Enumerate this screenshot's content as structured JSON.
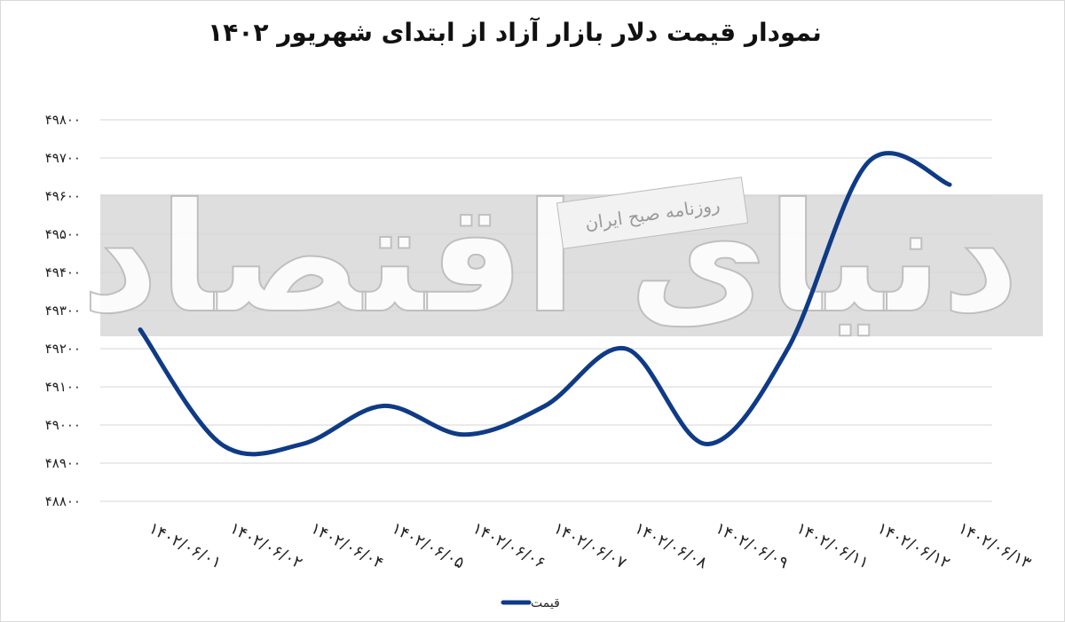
{
  "title": "نمودار قیمت دلار بازار آزاد از ابتدای شهریور ۱۴۰۲",
  "watermark": {
    "logo_text": "دنیای اقتصاد",
    "tag_text": "روزنامه صبح ایران"
  },
  "colors": {
    "line": "#0f3b86",
    "grid": "#d6d6d6",
    "band": "#dedede"
  },
  "chart_data": {
    "type": "line",
    "title": "نمودار قیمت دلار بازار آزاد از ابتدای شهریور ۱۴۰۲",
    "xlabel": "",
    "ylabel": "",
    "ylim": [
      48800,
      49800
    ],
    "yticks": [
      48800,
      48900,
      49000,
      49100,
      49200,
      49300,
      49400,
      49500,
      49600,
      49700,
      49800
    ],
    "ytick_labels": [
      "۴۸۸۰۰",
      "۴۸۹۰۰",
      "۴۹۰۰۰",
      "۴۹۱۰۰",
      "۴۹۲۰۰",
      "۴۹۳۰۰",
      "۴۹۴۰۰",
      "۴۹۵۰۰",
      "۴۹۶۰۰",
      "۴۹۷۰۰",
      "۴۹۸۰۰"
    ],
    "categories": [
      "۱۴۰۲/۰۶/۰۱",
      "۱۴۰۲/۰۶/۰۲",
      "۱۴۰۲/۰۶/۰۴",
      "۱۴۰۲/۰۶/۰۵",
      "۱۴۰۲/۰۶/۰۶",
      "۱۴۰۲/۰۶/۰۷",
      "۱۴۰۲/۰۶/۰۸",
      "۱۴۰۲/۰۶/۰۹",
      "۱۴۰۲/۰۶/۱۱",
      "۱۴۰۲/۰۶/۱۲",
      "۱۴۰۲/۰۶/۱۳"
    ],
    "grid": true,
    "legend_position": "bottom",
    "series": [
      {
        "name": "قیمت",
        "values": [
          49250,
          48950,
          48950,
          49050,
          48975,
          49050,
          49200,
          48950,
          49200,
          49690,
          49630
        ]
      }
    ]
  }
}
